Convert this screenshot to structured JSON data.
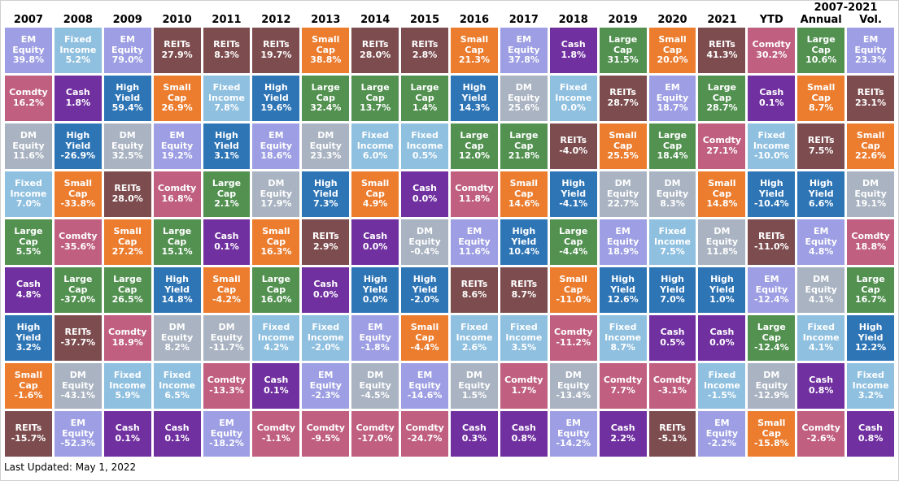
{
  "page": {
    "last_updated": "Last Updated: May 1, 2022"
  },
  "legend_colors": {
    "EM Equity": "#9D9EE3",
    "Fixed Income": "#8FC0E0",
    "High Yield": "#2E75B6",
    "DM Equity": "#A9B3C1",
    "REITs": "#7D4C4E",
    "Comdty": "#C05F7F",
    "Cash": "#7030A0",
    "Small Cap": "#EC7D2F",
    "Large Cap": "#529150"
  },
  "chart_data": {
    "type": "table",
    "subtype": "asset-class-returns-quilt",
    "super_header": {
      "label": "2007-2021",
      "span_columns": [
        "Annual",
        "Vol."
      ]
    },
    "value_format": "percent_one_decimal",
    "columns": [
      {
        "label": "2007",
        "cells": [
          {
            "asset": "EM Equity",
            "value": 39.8
          },
          {
            "asset": "Comdty",
            "value": 16.2
          },
          {
            "asset": "DM Equity",
            "value": 11.6
          },
          {
            "asset": "Fixed Income",
            "value": 7.0
          },
          {
            "asset": "Large Cap",
            "value": 5.5
          },
          {
            "asset": "Cash",
            "value": 4.8
          },
          {
            "asset": "High Yield",
            "value": 3.2
          },
          {
            "asset": "Small Cap",
            "value": -1.6
          },
          {
            "asset": "REITs",
            "value": -15.7
          }
        ]
      },
      {
        "label": "2008",
        "cells": [
          {
            "asset": "Fixed Income",
            "value": 5.2
          },
          {
            "asset": "Cash",
            "value": 1.8
          },
          {
            "asset": "High Yield",
            "value": -26.9
          },
          {
            "asset": "Small Cap",
            "value": -33.8
          },
          {
            "asset": "Comdty",
            "value": -35.6
          },
          {
            "asset": "Large Cap",
            "value": -37.0
          },
          {
            "asset": "REITs",
            "value": -37.7
          },
          {
            "asset": "DM Equity",
            "value": -43.1
          },
          {
            "asset": "EM Equity",
            "value": -52.3
          }
        ]
      },
      {
        "label": "2009",
        "cells": [
          {
            "asset": "EM Equity",
            "value": 79.0
          },
          {
            "asset": "High Yield",
            "value": 59.4
          },
          {
            "asset": "DM Equity",
            "value": 32.5
          },
          {
            "asset": "REITs",
            "value": 28.0
          },
          {
            "asset": "Small Cap",
            "value": 27.2
          },
          {
            "asset": "Large Cap",
            "value": 26.5
          },
          {
            "asset": "Comdty",
            "value": 18.9
          },
          {
            "asset": "Fixed Income",
            "value": 5.9
          },
          {
            "asset": "Cash",
            "value": 0.1
          }
        ]
      },
      {
        "label": "2010",
        "cells": [
          {
            "asset": "REITs",
            "value": 27.9
          },
          {
            "asset": "Small Cap",
            "value": 26.9
          },
          {
            "asset": "EM Equity",
            "value": 19.2
          },
          {
            "asset": "Comdty",
            "value": 16.8
          },
          {
            "asset": "Large Cap",
            "value": 15.1
          },
          {
            "asset": "High Yield",
            "value": 14.8
          },
          {
            "asset": "DM Equity",
            "value": 8.2
          },
          {
            "asset": "Fixed Income",
            "value": 6.5
          },
          {
            "asset": "Cash",
            "value": 0.1
          }
        ]
      },
      {
        "label": "2011",
        "cells": [
          {
            "asset": "REITs",
            "value": 8.3
          },
          {
            "asset": "Fixed Income",
            "value": 7.8
          },
          {
            "asset": "High Yield",
            "value": 3.1
          },
          {
            "asset": "Large Cap",
            "value": 2.1
          },
          {
            "asset": "Cash",
            "value": 0.1
          },
          {
            "asset": "Small Cap",
            "value": -4.2
          },
          {
            "asset": "DM Equity",
            "value": -11.7
          },
          {
            "asset": "Comdty",
            "value": -13.3
          },
          {
            "asset": "EM Equity",
            "value": -18.2
          }
        ]
      },
      {
        "label": "2012",
        "cells": [
          {
            "asset": "REITs",
            "value": 19.7
          },
          {
            "asset": "High Yield",
            "value": 19.6
          },
          {
            "asset": "EM Equity",
            "value": 18.6
          },
          {
            "asset": "DM Equity",
            "value": 17.9
          },
          {
            "asset": "Small Cap",
            "value": 16.3
          },
          {
            "asset": "Large Cap",
            "value": 16.0
          },
          {
            "asset": "Fixed Income",
            "value": 4.2
          },
          {
            "asset": "Cash",
            "value": 0.1
          },
          {
            "asset": "Comdty",
            "value": -1.1
          }
        ]
      },
      {
        "label": "2013",
        "cells": [
          {
            "asset": "Small Cap",
            "value": 38.8
          },
          {
            "asset": "Large Cap",
            "value": 32.4
          },
          {
            "asset": "DM Equity",
            "value": 23.3
          },
          {
            "asset": "High Yield",
            "value": 7.3
          },
          {
            "asset": "REITs",
            "value": 2.9
          },
          {
            "asset": "Cash",
            "value": 0.0
          },
          {
            "asset": "Fixed Income",
            "value": -2.0
          },
          {
            "asset": "EM Equity",
            "value": -2.3
          },
          {
            "asset": "Comdty",
            "value": -9.5
          }
        ]
      },
      {
        "label": "2014",
        "cells": [
          {
            "asset": "REITs",
            "value": 28.0
          },
          {
            "asset": "Large Cap",
            "value": 13.7
          },
          {
            "asset": "Fixed Income",
            "value": 6.0
          },
          {
            "asset": "Small Cap",
            "value": 4.9
          },
          {
            "asset": "Cash",
            "value": 0.0
          },
          {
            "asset": "High Yield",
            "value": 0.0
          },
          {
            "asset": "EM Equity",
            "value": -1.8
          },
          {
            "asset": "DM Equity",
            "value": -4.5
          },
          {
            "asset": "Comdty",
            "value": -17.0
          }
        ]
      },
      {
        "label": "2015",
        "cells": [
          {
            "asset": "REITs",
            "value": 2.8
          },
          {
            "asset": "Large Cap",
            "value": 1.4
          },
          {
            "asset": "Fixed Income",
            "value": 0.5
          },
          {
            "asset": "Cash",
            "value": 0.0
          },
          {
            "asset": "DM Equity",
            "value": -0.4
          },
          {
            "asset": "High Yield",
            "value": -2.0
          },
          {
            "asset": "Small Cap",
            "value": -4.4
          },
          {
            "asset": "EM Equity",
            "value": -14.6
          },
          {
            "asset": "Comdty",
            "value": -24.7
          }
        ]
      },
      {
        "label": "2016",
        "cells": [
          {
            "asset": "Small Cap",
            "value": 21.3
          },
          {
            "asset": "High Yield",
            "value": 14.3
          },
          {
            "asset": "Large Cap",
            "value": 12.0
          },
          {
            "asset": "Comdty",
            "value": 11.8
          },
          {
            "asset": "EM Equity",
            "value": 11.6
          },
          {
            "asset": "REITs",
            "value": 8.6
          },
          {
            "asset": "Fixed Income",
            "value": 2.6
          },
          {
            "asset": "DM Equity",
            "value": 1.5
          },
          {
            "asset": "Cash",
            "value": 0.3
          }
        ]
      },
      {
        "label": "2017",
        "cells": [
          {
            "asset": "EM Equity",
            "value": 37.8
          },
          {
            "asset": "DM Equity",
            "value": 25.6
          },
          {
            "asset": "Large Cap",
            "value": 21.8
          },
          {
            "asset": "Small Cap",
            "value": 14.6
          },
          {
            "asset": "High Yield",
            "value": 10.4
          },
          {
            "asset": "REITs",
            "value": 8.7
          },
          {
            "asset": "Fixed Income",
            "value": 3.5
          },
          {
            "asset": "Comdty",
            "value": 1.7
          },
          {
            "asset": "Cash",
            "value": 0.8
          }
        ]
      },
      {
        "label": "2018",
        "cells": [
          {
            "asset": "Cash",
            "value": 1.8
          },
          {
            "asset": "Fixed Income",
            "value": 0.0
          },
          {
            "asset": "REITs",
            "value": -4.0
          },
          {
            "asset": "High Yield",
            "value": -4.1
          },
          {
            "asset": "Large Cap",
            "value": -4.4
          },
          {
            "asset": "Small Cap",
            "value": -11.0
          },
          {
            "asset": "Comdty",
            "value": -11.2
          },
          {
            "asset": "DM Equity",
            "value": -13.4
          },
          {
            "asset": "EM Equity",
            "value": -14.2
          }
        ]
      },
      {
        "label": "2019",
        "cells": [
          {
            "asset": "Large Cap",
            "value": 31.5
          },
          {
            "asset": "REITs",
            "value": 28.7
          },
          {
            "asset": "Small Cap",
            "value": 25.5
          },
          {
            "asset": "DM Equity",
            "value": 22.7
          },
          {
            "asset": "EM Equity",
            "value": 18.9
          },
          {
            "asset": "High Yield",
            "value": 12.6
          },
          {
            "asset": "Fixed Income",
            "value": 8.7
          },
          {
            "asset": "Comdty",
            "value": 7.7
          },
          {
            "asset": "Cash",
            "value": 2.2
          }
        ]
      },
      {
        "label": "2020",
        "cells": [
          {
            "asset": "Small Cap",
            "value": 20.0
          },
          {
            "asset": "EM Equity",
            "value": 18.7
          },
          {
            "asset": "Large Cap",
            "value": 18.4
          },
          {
            "asset": "DM Equity",
            "value": 8.3
          },
          {
            "asset": "Fixed Income",
            "value": 7.5
          },
          {
            "asset": "High Yield",
            "value": 7.0
          },
          {
            "asset": "Cash",
            "value": 0.5
          },
          {
            "asset": "Comdty",
            "value": -3.1
          },
          {
            "asset": "REITs",
            "value": -5.1
          }
        ]
      },
      {
        "label": "2021",
        "cells": [
          {
            "asset": "REITs",
            "value": 41.3
          },
          {
            "asset": "Large Cap",
            "value": 28.7
          },
          {
            "asset": "Comdty",
            "value": 27.1
          },
          {
            "asset": "Small Cap",
            "value": 14.8
          },
          {
            "asset": "DM Equity",
            "value": 11.8
          },
          {
            "asset": "High Yield",
            "value": 1.0
          },
          {
            "asset": "Cash",
            "value": 0.0
          },
          {
            "asset": "Fixed Income",
            "value": -1.5
          },
          {
            "asset": "EM Equity",
            "value": -2.2
          }
        ]
      },
      {
        "label": "YTD",
        "cells": [
          {
            "asset": "Comdty",
            "value": 30.2
          },
          {
            "asset": "Cash",
            "value": 0.1
          },
          {
            "asset": "Fixed Income",
            "value": -10.0
          },
          {
            "asset": "High Yield",
            "value": -10.4
          },
          {
            "asset": "REITs",
            "value": -11.0
          },
          {
            "asset": "EM Equity",
            "value": -12.4
          },
          {
            "asset": "Large Cap",
            "value": -12.4
          },
          {
            "asset": "DM Equity",
            "value": -12.9
          },
          {
            "asset": "Small Cap",
            "value": -15.8
          }
        ]
      },
      {
        "label": "Annual",
        "cells": [
          {
            "asset": "Large Cap",
            "value": 10.6
          },
          {
            "asset": "Small Cap",
            "value": 8.7
          },
          {
            "asset": "REITs",
            "value": 7.5
          },
          {
            "asset": "High Yield",
            "value": 6.6
          },
          {
            "asset": "EM Equity",
            "value": 4.8
          },
          {
            "asset": "DM Equity",
            "value": 4.1
          },
          {
            "asset": "Fixed Income",
            "value": 4.1
          },
          {
            "asset": "Cash",
            "value": 0.8
          },
          {
            "asset": "Comdty",
            "value": -2.6
          }
        ]
      },
      {
        "label": "Vol.",
        "cells": [
          {
            "asset": "EM Equity",
            "value": 23.3
          },
          {
            "asset": "REITs",
            "value": 23.1
          },
          {
            "asset": "Small Cap",
            "value": 22.6
          },
          {
            "asset": "DM Equity",
            "value": 19.1
          },
          {
            "asset": "Comdty",
            "value": 18.8
          },
          {
            "asset": "Large Cap",
            "value": 16.7
          },
          {
            "asset": "High Yield",
            "value": 12.2
          },
          {
            "asset": "Fixed Income",
            "value": 3.2
          },
          {
            "asset": "Cash",
            "value": 0.8
          }
        ]
      }
    ]
  }
}
